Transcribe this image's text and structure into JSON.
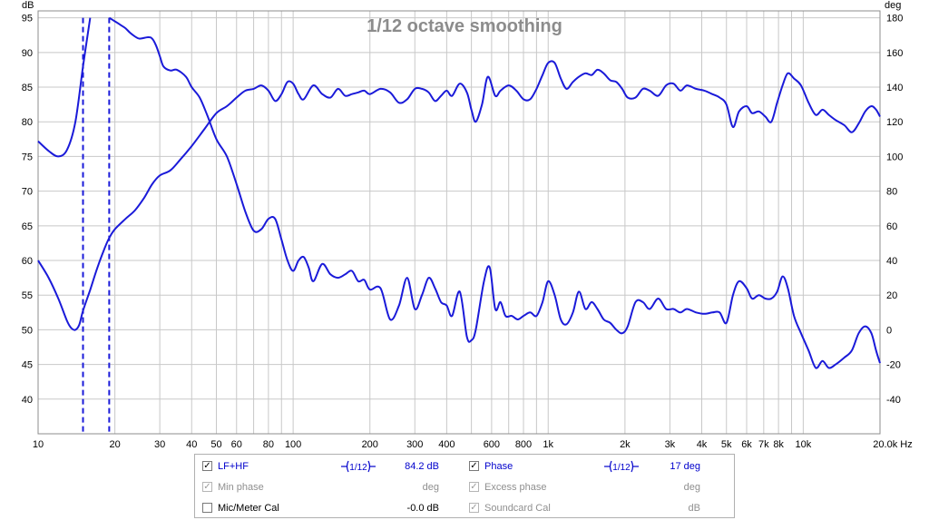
{
  "chart_data": {
    "type": "line",
    "title": "1/12 octave smoothing",
    "xscale": "log",
    "xlim": [
      10,
      20000
    ],
    "x_ticks": [
      10,
      20,
      30,
      40,
      50,
      60,
      80,
      100,
      200,
      300,
      400,
      600,
      800,
      1000,
      2000,
      3000,
      4000,
      5000,
      6000,
      7000,
      8000,
      10000,
      20000
    ],
    "x_tick_labels": [
      "10",
      "20",
      "30",
      "40",
      "50",
      "60",
      "80",
      "100",
      "200",
      "300",
      "400",
      "600",
      "800",
      "1k",
      "2k",
      "3k",
      "4k",
      "5k",
      "6k",
      "7k",
      "8k",
      "10k",
      "20.0k Hz"
    ],
    "y_left_label": "dB",
    "y_left_lim": [
      35,
      96
    ],
    "y_left_ticks": [
      40,
      45,
      50,
      55,
      60,
      65,
      70,
      75,
      80,
      85,
      90,
      95
    ],
    "y_right_label": "deg",
    "y_right_lim": [
      -60,
      184
    ],
    "y_right_ticks": [
      -40,
      -20,
      0,
      20,
      40,
      60,
      80,
      100,
      120,
      140,
      160,
      180
    ],
    "grid": true,
    "vlines": [
      15,
      19
    ],
    "series": [
      {
        "name": "LF+HF",
        "axis": "left",
        "color": "#1a1ad9",
        "points": [
          [
            10,
            77.2
          ],
          [
            11,
            75.8
          ],
          [
            12,
            75
          ],
          [
            13,
            76
          ],
          [
            14,
            80
          ],
          [
            15,
            88
          ],
          [
            16,
            95
          ],
          [
            19,
            95
          ],
          [
            20,
            94.5
          ],
          [
            21,
            94
          ],
          [
            22,
            93.5
          ],
          [
            23,
            92.8
          ],
          [
            24,
            92.3
          ],
          [
            25,
            92
          ],
          [
            27,
            92.2
          ],
          [
            28,
            92
          ],
          [
            29,
            91
          ],
          [
            30,
            89.5
          ],
          [
            31,
            88
          ],
          [
            33,
            87.4
          ],
          [
            35,
            87.5
          ],
          [
            38,
            86.5
          ],
          [
            40,
            85
          ],
          [
            43,
            83.5
          ],
          [
            46,
            81
          ],
          [
            50,
            77.5
          ],
          [
            55,
            75
          ],
          [
            60,
            71
          ],
          [
            65,
            67
          ],
          [
            70,
            64.3
          ],
          [
            75,
            64.5
          ],
          [
            80,
            66
          ],
          [
            85,
            66
          ],
          [
            90,
            63
          ],
          [
            95,
            60
          ],
          [
            100,
            58.5
          ],
          [
            105,
            60
          ],
          [
            110,
            60.5
          ],
          [
            115,
            59
          ],
          [
            120,
            57
          ],
          [
            130,
            59.5
          ],
          [
            140,
            58
          ],
          [
            150,
            57.5
          ],
          [
            160,
            58
          ],
          [
            170,
            58.5
          ],
          [
            180,
            57
          ],
          [
            190,
            57.2
          ],
          [
            200,
            55.8
          ],
          [
            220,
            56
          ],
          [
            240,
            51.5
          ],
          [
            260,
            53.5
          ],
          [
            280,
            57.5
          ],
          [
            300,
            53
          ],
          [
            320,
            55
          ],
          [
            340,
            57.5
          ],
          [
            360,
            56
          ],
          [
            380,
            54
          ],
          [
            400,
            53.5
          ],
          [
            420,
            52
          ],
          [
            450,
            55.5
          ],
          [
            480,
            49
          ],
          [
            500,
            48.5
          ],
          [
            520,
            50
          ],
          [
            560,
            57
          ],
          [
            590,
            59
          ],
          [
            620,
            53
          ],
          [
            650,
            54
          ],
          [
            680,
            52
          ],
          [
            720,
            52
          ],
          [
            760,
            51.5
          ],
          [
            800,
            52
          ],
          [
            850,
            52.5
          ],
          [
            900,
            52
          ],
          [
            950,
            54
          ],
          [
            1000,
            57
          ],
          [
            1060,
            55
          ],
          [
            1120,
            51.5
          ],
          [
            1180,
            50.8
          ],
          [
            1250,
            52.5
          ],
          [
            1320,
            55.5
          ],
          [
            1400,
            53
          ],
          [
            1480,
            54
          ],
          [
            1560,
            53
          ],
          [
            1650,
            51.5
          ],
          [
            1750,
            51
          ],
          [
            1850,
            50
          ],
          [
            1950,
            49.5
          ],
          [
            2050,
            50.5
          ],
          [
            2200,
            54
          ],
          [
            2350,
            54
          ],
          [
            2500,
            53
          ],
          [
            2700,
            54.5
          ],
          [
            2900,
            53
          ],
          [
            3100,
            53
          ],
          [
            3300,
            52.5
          ],
          [
            3500,
            53
          ],
          [
            3800,
            52.5
          ],
          [
            4100,
            52.3
          ],
          [
            4400,
            52.5
          ],
          [
            4700,
            52.5
          ],
          [
            5000,
            51
          ],
          [
            5300,
            55
          ],
          [
            5600,
            57
          ],
          [
            6000,
            56
          ],
          [
            6300,
            54.5
          ],
          [
            6700,
            55
          ],
          [
            7100,
            54.5
          ],
          [
            7500,
            54.5
          ],
          [
            7900,
            55.5
          ],
          [
            8300,
            57.7
          ],
          [
            8700,
            56
          ],
          [
            9200,
            52
          ],
          [
            9800,
            49.5
          ],
          [
            10500,
            47
          ],
          [
            11200,
            44.5
          ],
          [
            11900,
            45.5
          ],
          [
            12600,
            44.5
          ],
          [
            13400,
            45
          ],
          [
            14500,
            46
          ],
          [
            15500,
            47
          ],
          [
            16500,
            49.5
          ],
          [
            17500,
            50.5
          ],
          [
            18500,
            49.5
          ],
          [
            19300,
            47
          ],
          [
            20000,
            45.2
          ]
        ]
      },
      {
        "name": "Phase",
        "axis": "right",
        "color": "#1a1ad9",
        "points": [
          [
            10,
            40
          ],
          [
            11,
            30
          ],
          [
            12,
            18
          ],
          [
            13,
            5
          ],
          [
            13.5,
            1
          ],
          [
            14,
            0
          ],
          [
            14.5,
            3
          ],
          [
            15,
            11
          ],
          [
            16,
            23
          ],
          [
            17,
            35
          ],
          [
            18,
            45
          ],
          [
            19,
            53
          ],
          [
            20,
            58
          ],
          [
            22,
            64
          ],
          [
            24,
            69
          ],
          [
            26,
            76
          ],
          [
            28,
            84
          ],
          [
            30,
            89
          ],
          [
            33,
            92
          ],
          [
            36,
            98
          ],
          [
            40,
            106
          ],
          [
            45,
            116
          ],
          [
            50,
            125
          ],
          [
            55,
            129
          ],
          [
            60,
            134
          ],
          [
            65,
            138
          ],
          [
            70,
            139
          ],
          [
            75,
            141
          ],
          [
            80,
            138
          ],
          [
            85,
            132
          ],
          [
            90,
            136
          ],
          [
            95,
            143
          ],
          [
            100,
            142
          ],
          [
            105,
            136
          ],
          [
            110,
            133
          ],
          [
            120,
            141
          ],
          [
            130,
            136
          ],
          [
            140,
            134
          ],
          [
            150,
            139
          ],
          [
            160,
            135
          ],
          [
            170,
            136
          ],
          [
            180,
            137
          ],
          [
            190,
            138
          ],
          [
            200,
            136
          ],
          [
            220,
            139
          ],
          [
            240,
            137
          ],
          [
            260,
            131
          ],
          [
            280,
            133
          ],
          [
            300,
            139
          ],
          [
            320,
            139
          ],
          [
            340,
            137
          ],
          [
            360,
            132
          ],
          [
            380,
            135
          ],
          [
            400,
            138
          ],
          [
            420,
            135
          ],
          [
            450,
            142
          ],
          [
            480,
            137
          ],
          [
            500,
            127
          ],
          [
            520,
            120
          ],
          [
            550,
            130
          ],
          [
            580,
            146
          ],
          [
            620,
            135
          ],
          [
            650,
            138
          ],
          [
            700,
            141
          ],
          [
            750,
            138
          ],
          [
            800,
            133
          ],
          [
            850,
            133
          ],
          [
            900,
            139
          ],
          [
            950,
            147
          ],
          [
            1000,
            154
          ],
          [
            1060,
            154
          ],
          [
            1120,
            145
          ],
          [
            1180,
            139
          ],
          [
            1250,
            143
          ],
          [
            1320,
            146
          ],
          [
            1400,
            148
          ],
          [
            1480,
            147
          ],
          [
            1560,
            150
          ],
          [
            1650,
            148
          ],
          [
            1750,
            144
          ],
          [
            1850,
            143
          ],
          [
            1950,
            139
          ],
          [
            2050,
            134
          ],
          [
            2200,
            134
          ],
          [
            2350,
            139
          ],
          [
            2500,
            138
          ],
          [
            2700,
            135
          ],
          [
            2900,
            141
          ],
          [
            3100,
            142
          ],
          [
            3300,
            138
          ],
          [
            3500,
            141
          ],
          [
            3800,
            139
          ],
          [
            4100,
            138
          ],
          [
            4400,
            136
          ],
          [
            4700,
            134
          ],
          [
            5000,
            130
          ],
          [
            5300,
            117
          ],
          [
            5600,
            126
          ],
          [
            6000,
            129
          ],
          [
            6300,
            125
          ],
          [
            6700,
            126
          ],
          [
            7100,
            123
          ],
          [
            7500,
            120
          ],
          [
            7900,
            131
          ],
          [
            8300,
            141
          ],
          [
            8700,
            148
          ],
          [
            9200,
            145
          ],
          [
            9800,
            141
          ],
          [
            10500,
            131
          ],
          [
            11200,
            124
          ],
          [
            11900,
            127
          ],
          [
            12600,
            124
          ],
          [
            13400,
            121
          ],
          [
            14500,
            118
          ],
          [
            15500,
            114
          ],
          [
            16500,
            119
          ],
          [
            17500,
            126
          ],
          [
            18500,
            129
          ],
          [
            19300,
            127
          ],
          [
            20000,
            123
          ]
        ]
      }
    ]
  },
  "legend": {
    "row1": {
      "label": "LF+HF",
      "checked": true,
      "smoothing": "1/12",
      "value": "84.2 dB",
      "label2": "Phase",
      "checked2": true,
      "smoothing2": "1/12",
      "value2": "17 deg"
    },
    "row2": {
      "label": "Min phase",
      "checked": true,
      "value": "deg",
      "label2": "Excess phase",
      "checked2": true,
      "value2": "deg"
    },
    "row3": {
      "label": "Mic/Meter Cal",
      "checked": false,
      "value": "-0.0 dB",
      "label2": "Soundcard Cal",
      "checked2": true,
      "value2": "dB"
    },
    "check_mark": "✓"
  }
}
